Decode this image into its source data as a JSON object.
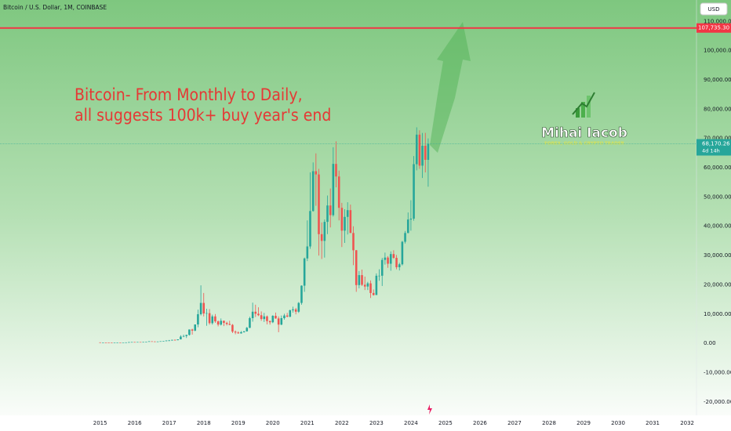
{
  "chart_data": {
    "type": "candlestick",
    "title": "Bitcoin / U.S. Dollar, 1M, COINBASE",
    "currency": "USD",
    "annotation": [
      "Bitcoin- From Monthly to Daily,",
      "all suggests 100k+ buy year's end"
    ],
    "watermark": {
      "name": "Mihai Iacob",
      "tagline": "FOREX, GOLD & CRYPTO TRADER"
    },
    "up_color": "#26a69a",
    "down_color": "#ef5350",
    "x": [
      2015,
      2015.083,
      2015.167,
      2015.25,
      2015.333,
      2015.417,
      2015.5,
      2015.583,
      2015.667,
      2015.75,
      2015.833,
      2015.917,
      2016,
      2016.083,
      2016.167,
      2016.25,
      2016.333,
      2016.417,
      2016.5,
      2016.583,
      2016.667,
      2016.75,
      2016.833,
      2016.917,
      2017,
      2017.083,
      2017.167,
      2017.25,
      2017.333,
      2017.417,
      2017.5,
      2017.583,
      2017.667,
      2017.75,
      2017.833,
      2017.917,
      2018,
      2018.083,
      2018.167,
      2018.25,
      2018.333,
      2018.417,
      2018.5,
      2018.583,
      2018.667,
      2018.75,
      2018.833,
      2018.917,
      2019,
      2019.083,
      2019.167,
      2019.25,
      2019.333,
      2019.417,
      2019.5,
      2019.583,
      2019.667,
      2019.75,
      2019.833,
      2019.917,
      2020,
      2020.083,
      2020.167,
      2020.25,
      2020.333,
      2020.417,
      2020.5,
      2020.583,
      2020.667,
      2020.75,
      2020.833,
      2020.917,
      2021,
      2021.083,
      2021.167,
      2021.25,
      2021.333,
      2021.417,
      2021.5,
      2021.583,
      2021.667,
      2021.75,
      2021.833,
      2021.917,
      2022,
      2022.083,
      2022.167,
      2022.25,
      2022.333,
      2022.417,
      2022.5,
      2022.583,
      2022.667,
      2022.75,
      2022.833,
      2022.917,
      2023,
      2023.083,
      2023.167,
      2023.25,
      2023.333,
      2023.417,
      2023.5,
      2023.583,
      2023.667,
      2023.75,
      2023.833,
      2023.917,
      2024,
      2024.083,
      2024.167,
      2024.25,
      2024.333,
      2024.417,
      2024.5
    ],
    "open": [
      320,
      217,
      254,
      244,
      236,
      230,
      263,
      284,
      230,
      236,
      314,
      377,
      430,
      368,
      437,
      416,
      448,
      531,
      672,
      624,
      575,
      609,
      700,
      745,
      964,
      970,
      1190,
      1080,
      1350,
      2300,
      2480,
      2870,
      4730,
      4340,
      6450,
      9950,
      13800,
      10200,
      10300,
      6900,
      9200,
      7500,
      6400,
      7700,
      7000,
      6600,
      6300,
      4000,
      3700,
      3400,
      3800,
      4100,
      5300,
      8600,
      10800,
      10100,
      9600,
      8300,
      9200,
      7600,
      7200,
      9400,
      8500,
      6400,
      8600,
      9500,
      9100,
      11300,
      11600,
      10800,
      13800,
      19700,
      29000,
      33100,
      45200,
      58800,
      57700,
      37300,
      35000,
      41500,
      47100,
      43800,
      61300,
      57000,
      46300,
      38500,
      43200,
      45500,
      37700,
      31800,
      19900,
      23300,
      20000,
      19400,
      20500,
      17200,
      16500,
      23100,
      23100,
      28500,
      29300,
      27200,
      30500,
      29200,
      26000,
      27000,
      34700,
      37700,
      42300,
      42600,
      61200,
      71300,
      60700,
      67500,
      62700
    ],
    "high": [
      320,
      265,
      300,
      260,
      250,
      270,
      315,
      285,
      245,
      330,
      500,
      465,
      465,
      445,
      440,
      470,
      550,
      780,
      700,
      630,
      630,
      720,
      760,
      980,
      1150,
      1210,
      1290,
      1350,
      2760,
      2980,
      2920,
      4740,
      5000,
      6450,
      11500,
      19800,
      17200,
      11800,
      11700,
      9800,
      10000,
      7800,
      8500,
      7800,
      7400,
      7700,
      6600,
      4400,
      4100,
      4200,
      4200,
      5600,
      9100,
      13900,
      13200,
      12300,
      10900,
      10400,
      9500,
      7800,
      9600,
      10500,
      9200,
      9500,
      10100,
      10400,
      11500,
      12500,
      12100,
      14100,
      19800,
      29300,
      42000,
      58400,
      61800,
      64900,
      59600,
      41300,
      42300,
      50500,
      52900,
      67000,
      69000,
      59000,
      48000,
      45800,
      48200,
      47400,
      40000,
      31900,
      24700,
      25200,
      22800,
      21000,
      21500,
      18400,
      23900,
      25300,
      29200,
      31000,
      29800,
      31400,
      31800,
      30200,
      27500,
      35000,
      38400,
      44700,
      48900,
      64000,
      73800,
      72800,
      71900,
      71900,
      70000
    ],
    "low": [
      170,
      210,
      240,
      215,
      225,
      220,
      255,
      200,
      225,
      235,
      300,
      350,
      350,
      365,
      400,
      410,
      440,
      520,
      600,
      470,
      570,
      600,
      690,
      740,
      750,
      920,
      890,
      1060,
      1350,
      2100,
      1830,
      2670,
      2970,
      4120,
      5500,
      9500,
      9200,
      6000,
      6400,
      6400,
      7000,
      5800,
      6100,
      5900,
      6100,
      6200,
      3500,
      3100,
      3300,
      3300,
      3700,
      4000,
      5200,
      7400,
      9000,
      9300,
      7700,
      7300,
      6500,
      6400,
      6900,
      8400,
      3800,
      6200,
      8100,
      8900,
      8900,
      10500,
      9900,
      10400,
      13200,
      17600,
      28100,
      32300,
      45000,
      47000,
      30000,
      28800,
      29300,
      37300,
      39600,
      43300,
      53300,
      42000,
      32900,
      34300,
      37200,
      37700,
      26700,
      17600,
      18800,
      19600,
      18200,
      18200,
      15500,
      16300,
      16500,
      21400,
      19600,
      26900,
      25800,
      24800,
      28900,
      25300,
      24900,
      26600,
      34100,
      37600,
      38500,
      41900,
      59100,
      59600,
      56500,
      58400,
      53500
    ],
    "close": [
      217,
      254,
      244,
      236,
      230,
      263,
      284,
      230,
      236,
      314,
      377,
      430,
      368,
      437,
      416,
      448,
      531,
      672,
      624,
      575,
      609,
      700,
      745,
      964,
      970,
      1190,
      1080,
      1350,
      2300,
      2480,
      2870,
      4730,
      4340,
      6450,
      9950,
      13800,
      10200,
      10300,
      6900,
      9200,
      7500,
      6400,
      7700,
      7000,
      6600,
      6300,
      4000,
      3700,
      3400,
      3800,
      4100,
      5300,
      8600,
      10800,
      10100,
      9600,
      8300,
      9200,
      7600,
      7200,
      9400,
      8500,
      6400,
      8600,
      9500,
      9100,
      11300,
      11600,
      10800,
      13800,
      19700,
      29000,
      33100,
      45200,
      58800,
      57700,
      37300,
      35000,
      41500,
      47100,
      43800,
      61300,
      57000,
      46300,
      38500,
      43200,
      45500,
      37700,
      31800,
      19900,
      23300,
      20000,
      19400,
      20500,
      17200,
      16500,
      23100,
      23100,
      28500,
      29300,
      27200,
      30500,
      29200,
      26000,
      27000,
      34700,
      37700,
      42300,
      42600,
      61200,
      71300,
      60700,
      67500,
      62700,
      68170.26
    ],
    "xlim": [
      2012.1,
      2032.27
    ],
    "xticks": [
      2015,
      2016,
      2017,
      2018,
      2019,
      2020,
      2021,
      2022,
      2023,
      2024,
      2025,
      2026,
      2027,
      2028,
      2029,
      2030,
      2031,
      2032
    ],
    "ylim": [
      -24600,
      117300
    ],
    "yticks": [
      {
        "value": 110000,
        "label": "110,000.00"
      },
      {
        "value": 100000,
        "label": "100,000.00"
      },
      {
        "value": 90000,
        "label": "90,000.00"
      },
      {
        "value": 80000,
        "label": "80,000.00"
      },
      {
        "value": 70000,
        "label": "70,000.00"
      },
      {
        "value": 60000,
        "label": "60,000.00"
      },
      {
        "value": 50000,
        "label": "50,000.00"
      },
      {
        "value": 40000,
        "label": "40,000.00"
      },
      {
        "value": 30000,
        "label": "30,000.00"
      },
      {
        "value": 20000,
        "label": "20,000.00"
      },
      {
        "value": 10000,
        "label": "10,000.00"
      },
      {
        "value": 0,
        "label": "0.00"
      },
      {
        "value": -10000,
        "label": "-10,000.00"
      },
      {
        "value": -20000,
        "label": "-20,000.00"
      }
    ],
    "hline": {
      "value": 107735.3,
      "label": "107,735.30",
      "color": "#f23645"
    },
    "last_price": {
      "value": 68170.26,
      "label": "68,170.26",
      "countdown": "4d 14h",
      "color": "#26a69a"
    }
  }
}
